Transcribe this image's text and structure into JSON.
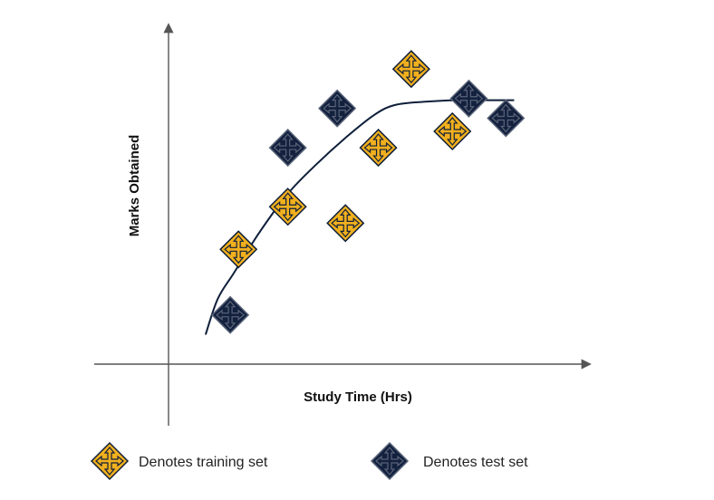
{
  "chart_data": {
    "type": "scatter",
    "title": "",
    "xlabel": "Study Time (Hrs)",
    "ylabel": "Marks Obtained",
    "xlim": [
      0,
      10
    ],
    "ylim": [
      0,
      10
    ],
    "grid": false,
    "legend_position": "bottom",
    "series": [
      {
        "name": "Denotes training set",
        "marker": "yellow-diamond-cross",
        "color": "#f2b01e",
        "outline": "#0f1f3a",
        "x": [
          1.7,
          2.9,
          4.3,
          5.1,
          5.9,
          6.9
        ],
        "y": [
          3.5,
          4.8,
          4.3,
          6.6,
          9.0,
          7.1
        ]
      },
      {
        "name": "Denotes test set",
        "marker": "navy-diamond-cross",
        "color": "#13213f",
        "outline": "#5a6478",
        "x": [
          1.5,
          2.9,
          4.1,
          7.3,
          8.2
        ],
        "y": [
          1.5,
          6.6,
          7.8,
          8.1,
          7.5
        ]
      }
    ],
    "trend_curve": {
      "x": [
        0.9,
        1.2,
        1.6,
        2.2,
        2.9,
        3.6,
        4.3,
        5.0,
        5.5,
        6.2,
        7.0,
        7.8,
        8.4
      ],
      "y": [
        0.9,
        2.0,
        2.8,
        4.0,
        5.2,
        6.1,
        6.9,
        7.6,
        7.9,
        8.0,
        8.05,
        8.05,
        8.05
      ]
    }
  }
}
